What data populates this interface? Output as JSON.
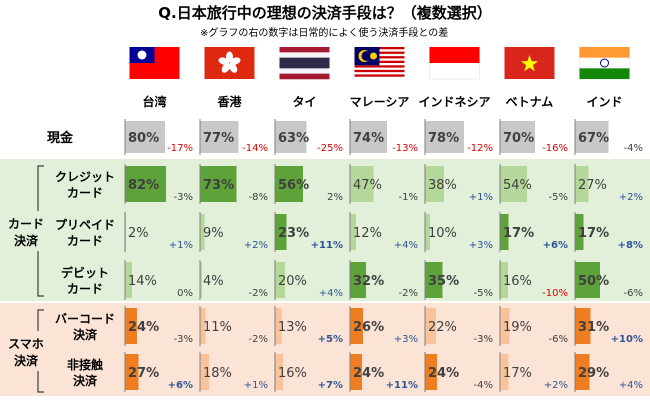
{
  "chart_data": {
    "type": "bar",
    "title": "Q.日本旅行中の理想の決済手段は？（複数選択）",
    "subtitle": "※グラフの右の数字は日常的によく使う決済手段との差",
    "countries": [
      "台湾",
      "香港",
      "タイ",
      "マレーシア",
      "インドネシア",
      "ベトナム",
      "インド"
    ],
    "flags": [
      "taiwan-flag",
      "hong-kong-flag",
      "thailand-flag",
      "malaysia-flag",
      "indonesia-flag",
      "vietnam-flag",
      "india-flag"
    ],
    "value_max": 100,
    "rows": [
      {
        "label": [
          "現金"
        ],
        "group": "",
        "values": [
          80,
          77,
          63,
          74,
          78,
          70,
          67
        ],
        "diffs": [
          "-17%",
          "-14%",
          "-25%",
          "-13%",
          "-12%",
          "-16%",
          "-4%"
        ]
      },
      {
        "label": [
          "クレジット",
          "カード"
        ],
        "group": "card",
        "values": [
          82,
          73,
          56,
          47,
          38,
          54,
          27
        ],
        "diffs": [
          "-3%",
          "-8%",
          "2%",
          "-1%",
          "+1%",
          "-5%",
          "+2%"
        ]
      },
      {
        "label": [
          "プリペイド",
          "カード"
        ],
        "group": "card",
        "values": [
          2,
          9,
          23,
          12,
          10,
          17,
          17
        ],
        "diffs": [
          "+1%",
          "+2%",
          "+11%",
          "+4%",
          "+3%",
          "+6%",
          "+8%"
        ]
      },
      {
        "label": [
          "デビット",
          "カード"
        ],
        "group": "card",
        "values": [
          14,
          4,
          20,
          32,
          35,
          16,
          50
        ],
        "diffs": [
          "0%",
          "-2%",
          "+4%",
          "-2%",
          "-5%",
          "-10%",
          "-6%"
        ]
      },
      {
        "label": [
          "バーコード",
          "決済"
        ],
        "group": "smartphone",
        "values": [
          24,
          11,
          13,
          26,
          22,
          19,
          31
        ],
        "diffs": [
          "-3%",
          "-2%",
          "+5%",
          "+3%",
          "-3%",
          "-6%",
          "+10%"
        ]
      },
      {
        "label": [
          "非接触",
          "決済"
        ],
        "group": "smartphone",
        "values": [
          27,
          18,
          16,
          24,
          24,
          17,
          29
        ],
        "diffs": [
          "+6%",
          "+1%",
          "+7%",
          "+11%",
          "-4%",
          "+2%",
          "+4%"
        ]
      }
    ],
    "groups": {
      "card": {
        "label": [
          "カード",
          "決済"
        ]
      },
      "smartphone": {
        "label": [
          "スマホ",
          "決済"
        ]
      }
    },
    "colors": {
      "cash_bar": "#c8c8c8",
      "card_bar_dark": "#5ea33a",
      "card_bar_light": "#b4d79a",
      "card_bg": "#e2efd9",
      "smartphone_bar_dark": "#ef7d22",
      "smartphone_bar_light": "#f8c29a",
      "smartphone_bg": "#fbe3d6",
      "diff_positive": "#2f5597",
      "diff_negative": "#e00000",
      "diff_neutral": "#404040"
    }
  }
}
